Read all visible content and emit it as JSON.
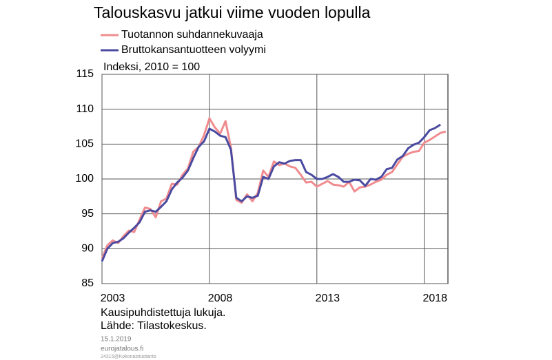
{
  "chart_data": {
    "type": "line",
    "title": "Talouskasvu jatkui viime vuoden lopulla",
    "y_label": "Indeksi, 2010 = 100",
    "notes": [
      "Kausipuhdistettuja lukuja.",
      "Lähde: Tilastokeskus."
    ],
    "footer": [
      "15.1.2019",
      "eurojatalous.fi",
      "24315@Kokonaistuotanto"
    ],
    "x": [
      2003,
      2003.25,
      2003.5,
      2003.75,
      2004,
      2004.25,
      2004.5,
      2004.75,
      2005,
      2005.25,
      2005.5,
      2005.75,
      2006,
      2006.25,
      2006.5,
      2006.75,
      2007,
      2007.25,
      2007.5,
      2007.75,
      2008,
      2008.25,
      2008.5,
      2008.75,
      2009,
      2009.25,
      2009.5,
      2009.75,
      2010,
      2010.25,
      2010.5,
      2010.75,
      2011,
      2011.25,
      2011.5,
      2011.75,
      2012,
      2012.25,
      2012.5,
      2012.75,
      2013,
      2013.25,
      2013.5,
      2013.75,
      2014,
      2014.25,
      2014.5,
      2014.75,
      2015,
      2015.25,
      2015.5,
      2015.75,
      2016,
      2016.25,
      2016.5,
      2016.75,
      2017,
      2017.25,
      2017.5,
      2017.75,
      2018,
      2018.25,
      2018.5,
      2018.75,
      2019
    ],
    "series": [
      {
        "name": "Tuotannon suhdannekuvaaja",
        "color": "#f08c8f",
        "values": [
          88.6,
          90.5,
          91.2,
          90.8,
          91.8,
          92.6,
          92.4,
          94.2,
          95.9,
          95.7,
          94.5,
          96.8,
          97.2,
          99.3,
          99.2,
          100.6,
          101.5,
          103.9,
          104.6,
          106.3,
          108.7,
          107.4,
          106.5,
          108.3,
          104.5,
          97.0,
          96.6,
          97.8,
          96.8,
          98.0,
          101.2,
          100.3,
          102.5,
          102.0,
          102.2,
          101.8,
          101.6,
          100.6,
          99.5,
          99.6,
          98.9,
          99.3,
          99.7,
          99.2,
          99.1,
          98.9,
          99.6,
          98.2,
          98.8,
          98.9,
          99.2,
          99.6,
          99.9,
          100.6,
          101.0,
          102.1,
          103.2,
          103.6,
          103.9,
          104.0,
          105.2,
          105.6,
          106.1,
          106.6,
          106.8
        ]
      },
      {
        "name": "Bruttokansantuotteen volyymi",
        "color": "#4a4aa0",
        "values": [
          88.2,
          90.0,
          90.8,
          91.0,
          91.5,
          92.3,
          93.0,
          93.8,
          95.3,
          95.5,
          95.3,
          96.0,
          96.8,
          98.5,
          99.5,
          100.2,
          101.2,
          103.0,
          104.6,
          105.4,
          107.2,
          106.8,
          106.2,
          106.0,
          104.2,
          97.3,
          96.8,
          97.5,
          97.3,
          97.6,
          100.3,
          100.0,
          101.8,
          102.4,
          102.2,
          102.6,
          102.7,
          102.7,
          101.0,
          100.6,
          100.0,
          100.0,
          100.3,
          100.7,
          100.3,
          99.6,
          99.6,
          99.9,
          99.8,
          99.0,
          100.0,
          99.9,
          100.3,
          101.4,
          101.6,
          102.8,
          103.3,
          104.4,
          104.9,
          105.2,
          106.0,
          107.0,
          107.3,
          107.8,
          null
        ]
      }
    ],
    "xlim": [
      2003,
      2019.1
    ],
    "xticks": [
      2003,
      2008,
      2013,
      2018
    ],
    "ylim": [
      85,
      115
    ],
    "yticks": [
      85,
      90,
      95,
      100,
      105,
      110,
      115
    ],
    "grid": true
  }
}
